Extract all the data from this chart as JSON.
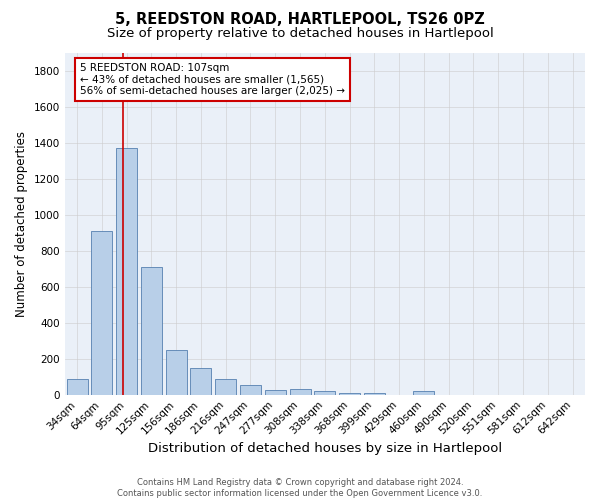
{
  "title": "5, REEDSTON ROAD, HARTLEPOOL, TS26 0PZ",
  "subtitle": "Size of property relative to detached houses in Hartlepool",
  "xlabel": "Distribution of detached houses by size in Hartlepool",
  "ylabel": "Number of detached properties",
  "categories": [
    "34sqm",
    "64sqm",
    "95sqm",
    "125sqm",
    "156sqm",
    "186sqm",
    "216sqm",
    "247sqm",
    "277sqm",
    "308sqm",
    "338sqm",
    "368sqm",
    "399sqm",
    "429sqm",
    "460sqm",
    "490sqm",
    "520sqm",
    "551sqm",
    "581sqm",
    "612sqm",
    "642sqm"
  ],
  "values": [
    85,
    910,
    1370,
    710,
    248,
    148,
    88,
    55,
    28,
    30,
    18,
    8,
    10,
    0,
    18,
    0,
    0,
    0,
    0,
    0,
    0
  ],
  "bar_color": "#b8cfe8",
  "bar_edge_color": "#5580b0",
  "plot_background": "#eaf0f8",
  "figure_background": "#ffffff",
  "grid_color": "#d8dde8",
  "red_line_index": 2,
  "red_line_color": "#cc0000",
  "annotation_text": "5 REEDSTON ROAD: 107sqm\n← 43% of detached houses are smaller (1,565)\n56% of semi-detached houses are larger (2,025) →",
  "annotation_box_facecolor": "#ffffff",
  "annotation_box_edgecolor": "#cc0000",
  "ylim": [
    0,
    1900
  ],
  "yticks": [
    0,
    200,
    400,
    600,
    800,
    1000,
    1200,
    1400,
    1600,
    1800
  ],
  "footer": "Contains HM Land Registry data © Crown copyright and database right 2024.\nContains public sector information licensed under the Open Government Licence v3.0.",
  "title_fontsize": 10.5,
  "subtitle_fontsize": 9.5,
  "xlabel_fontsize": 9.5,
  "ylabel_fontsize": 8.5,
  "tick_fontsize": 7.5,
  "annotation_fontsize": 7.5,
  "footer_fontsize": 6.0
}
